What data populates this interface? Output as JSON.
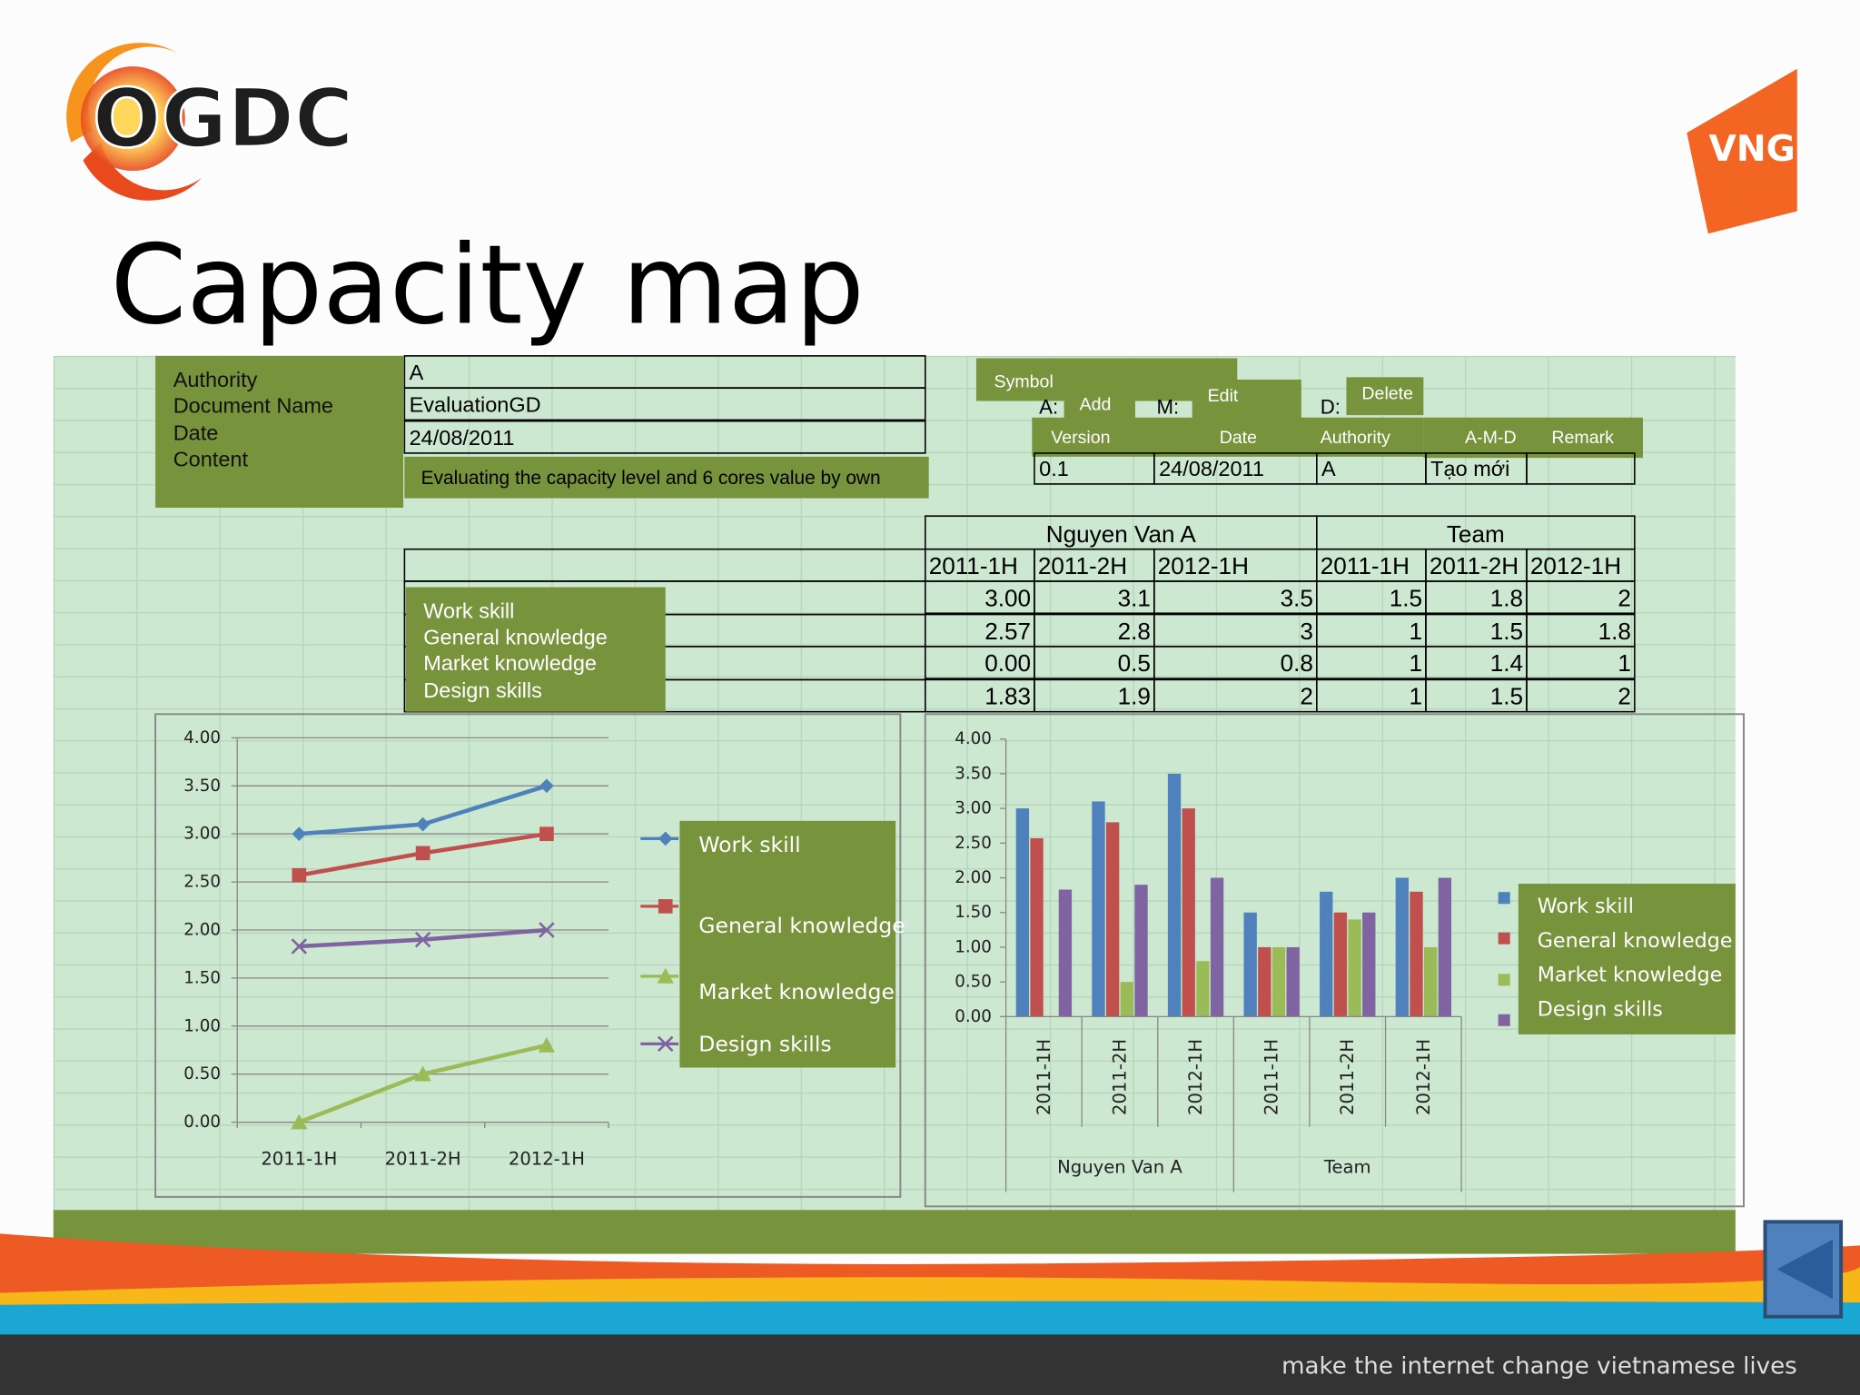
{
  "header": {
    "logo": "OGDC",
    "brand": "VNG",
    "title": "Capacity map"
  },
  "doc_info": {
    "labels": [
      "Authority",
      "Document Name",
      "Date",
      "Content"
    ],
    "values": [
      "A",
      "EvaluationGD",
      "24/08/2011",
      "Evaluating the capacity level and 6 cores value by own"
    ]
  },
  "symbols": {
    "title": "Symbol",
    "items": [
      {
        "code": "A:",
        "meaning": "Add"
      },
      {
        "code": "M:",
        "meaning": "Edit"
      },
      {
        "code": "D:",
        "meaning": "Delete"
      }
    ]
  },
  "history": {
    "columns": [
      "Version",
      "Date",
      "Authority",
      "A-M-D",
      "Remark"
    ],
    "rows": [
      [
        "0.1",
        "24/08/2011",
        "A",
        "Tạo mới"
      ]
    ]
  },
  "table": {
    "groups": [
      "Nguyen Van A",
      "Team"
    ],
    "periods": [
      "2011-1H",
      "2011-2H",
      "2012-1H"
    ],
    "row_labels": [
      "Work skill",
      "General knowledge",
      "Market knowledge",
      "Design skills"
    ],
    "rows": [
      [
        "3.00",
        "3.1",
        "3.5",
        "1.5",
        "1.8",
        "2"
      ],
      [
        "2.57",
        "2.8",
        "3",
        "1",
        "1.5",
        "1.8"
      ],
      [
        "0.00",
        "0.5",
        "0.8",
        "1",
        "1.4",
        "1"
      ],
      [
        "1.83",
        "1.9",
        "2",
        "1",
        "1.5",
        "2"
      ]
    ]
  },
  "chart_data": [
    {
      "type": "line",
      "categories": [
        "2011-1H",
        "2011-2H",
        "2012-1H"
      ],
      "series": [
        {
          "name": "Work skill",
          "color": "#4f81bd",
          "marker": "diamond",
          "values": [
            3,
            3.1,
            3.5
          ]
        },
        {
          "name": "General knowledge",
          "color": "#c0504d",
          "marker": "square",
          "values": [
            2.57,
            2.8,
            3
          ]
        },
        {
          "name": "Market knowledge",
          "color": "#9bbb59",
          "marker": "triangle",
          "values": [
            0,
            0.5,
            0.8
          ]
        },
        {
          "name": "Design skills",
          "color": "#8064a2",
          "marker": "x",
          "values": [
            1.83,
            1.9,
            2
          ]
        }
      ],
      "ylim": [
        0,
        4
      ],
      "yticks": [
        {
          "value": 0,
          "label": "0.00"
        },
        {
          "value": 0.5,
          "label": "0.50"
        },
        {
          "value": 1,
          "label": "1.00"
        },
        {
          "value": 1.5,
          "label": "1.50"
        },
        {
          "value": 2,
          "label": "2.00"
        },
        {
          "value": 2.5,
          "label": "2.50"
        },
        {
          "value": 3,
          "label": "3.00"
        },
        {
          "value": 3.5,
          "label": "3.50"
        },
        {
          "value": 4,
          "label": "4.00"
        }
      ],
      "grid": true,
      "legend": "right"
    },
    {
      "type": "bar",
      "categories": [
        "2011-1H",
        "2011-2H",
        "2012-1H",
        "2011-1H",
        "2011-2H",
        "2012-1H"
      ],
      "category_groups": [
        "Nguyen Van A",
        "Team"
      ],
      "series": [
        {
          "name": "Work skill",
          "color": "#4f81bd",
          "values": [
            3,
            3.1,
            3.5,
            1.5,
            1.8,
            2
          ]
        },
        {
          "name": "General knowledge",
          "color": "#c0504d",
          "values": [
            2.57,
            2.8,
            3,
            1,
            1.5,
            1.8
          ]
        },
        {
          "name": "Market knowledge",
          "color": "#9bbb59",
          "values": [
            0,
            0.5,
            0.8,
            1,
            1.4,
            1
          ]
        },
        {
          "name": "Design skills",
          "color": "#8064a2",
          "values": [
            1.83,
            1.9,
            2,
            1,
            1.5,
            2
          ]
        }
      ],
      "ylim": [
        0,
        4
      ],
      "yticks": [
        {
          "value": 0,
          "label": "0.00"
        },
        {
          "value": 0.5,
          "label": "0.50"
        },
        {
          "value": 1,
          "label": "1.00"
        },
        {
          "value": 1.5,
          "label": "1.50"
        },
        {
          "value": 2,
          "label": "2.00"
        },
        {
          "value": 2.5,
          "label": "2.50"
        },
        {
          "value": 3,
          "label": "3.00"
        },
        {
          "value": 3.5,
          "label": "3.50"
        },
        {
          "value": 4,
          "label": "4.00"
        }
      ],
      "grid": false,
      "legend": "right"
    }
  ],
  "footer": {
    "tagline": "make the internet change vietnamese lives"
  }
}
